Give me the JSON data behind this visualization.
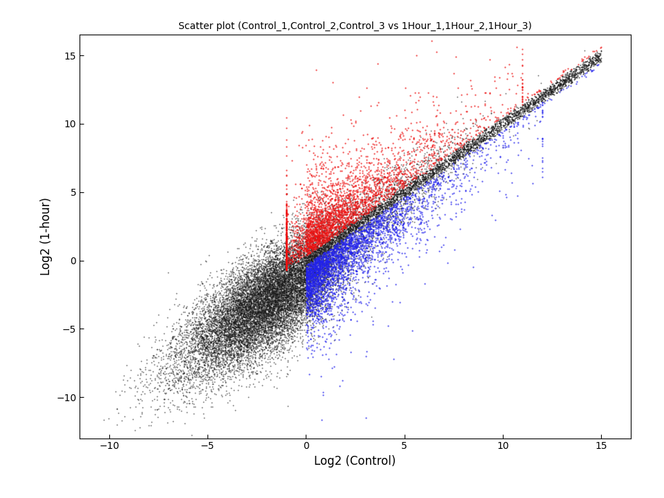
{
  "title": "Scatter plot (Control_1,Control_2,Control_3 vs 1Hour_1,1Hour_2,1Hour_3)",
  "xlabel": "Log2 (Control)",
  "ylabel": "Log2 (1-hour)",
  "xlim": [
    -11.5,
    16.5
  ],
  "ylim": [
    -13,
    16.5
  ],
  "xticks": [
    -10,
    -5,
    0,
    5,
    10,
    15
  ],
  "yticks": [
    -10,
    -5,
    0,
    5,
    10,
    15
  ],
  "bg_color": "#ffffff",
  "title_fontsize": 10,
  "label_fontsize": 12,
  "tick_fontsize": 10,
  "seed": 7
}
